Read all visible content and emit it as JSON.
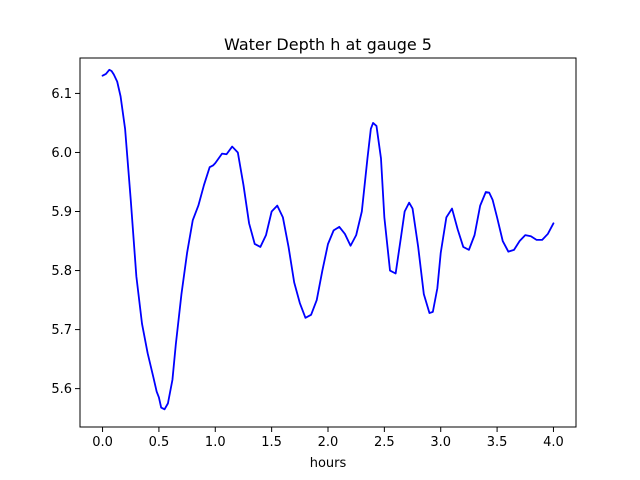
{
  "chart_data": {
    "type": "line",
    "title": "Water Depth h at gauge 5",
    "xlabel": "hours",
    "ylabel": "",
    "xlim": [
      -0.2,
      4.2
    ],
    "ylim": [
      5.535,
      6.16
    ],
    "grid": false,
    "legend": "none",
    "xticks": [
      0.0,
      0.5,
      1.0,
      1.5,
      2.0,
      2.5,
      3.0,
      3.5,
      4.0
    ],
    "xtick_labels": [
      "0.0",
      "0.5",
      "1.0",
      "1.5",
      "2.0",
      "2.5",
      "3.0",
      "3.5",
      "4.0"
    ],
    "yticks": [
      5.6,
      5.7,
      5.8,
      5.9,
      6.0,
      6.1
    ],
    "ytick_labels": [
      "5.6",
      "5.7",
      "5.8",
      "5.9",
      "6.0",
      "6.1"
    ],
    "series": [
      {
        "color": "#0000ff",
        "x": [
          0.0,
          0.03,
          0.06,
          0.08,
          0.1,
          0.13,
          0.16,
          0.2,
          0.25,
          0.3,
          0.35,
          0.4,
          0.45,
          0.48,
          0.5,
          0.52,
          0.55,
          0.58,
          0.62,
          0.65,
          0.7,
          0.75,
          0.8,
          0.85,
          0.9,
          0.95,
          0.98,
          1.0,
          1.03,
          1.06,
          1.1,
          1.15,
          1.2,
          1.25,
          1.3,
          1.35,
          1.4,
          1.45,
          1.5,
          1.55,
          1.6,
          1.65,
          1.7,
          1.75,
          1.8,
          1.85,
          1.9,
          1.95,
          2.0,
          2.05,
          2.1,
          2.15,
          2.2,
          2.25,
          2.3,
          2.35,
          2.38,
          2.4,
          2.43,
          2.47,
          2.5,
          2.55,
          2.6,
          2.65,
          2.68,
          2.72,
          2.75,
          2.8,
          2.85,
          2.9,
          2.93,
          2.97,
          3.0,
          3.05,
          3.1,
          3.15,
          3.2,
          3.25,
          3.3,
          3.35,
          3.4,
          3.43,
          3.46,
          3.5,
          3.55,
          3.6,
          3.65,
          3.7,
          3.75,
          3.8,
          3.85,
          3.9,
          3.95,
          4.0
        ],
        "values": [
          6.13,
          6.133,
          6.14,
          6.138,
          6.132,
          6.12,
          6.095,
          6.04,
          5.92,
          5.79,
          5.71,
          5.66,
          5.62,
          5.595,
          5.585,
          5.568,
          5.565,
          5.575,
          5.615,
          5.675,
          5.76,
          5.83,
          5.885,
          5.91,
          5.945,
          5.975,
          5.978,
          5.982,
          5.99,
          5.998,
          5.997,
          6.01,
          6.0,
          5.945,
          5.88,
          5.845,
          5.84,
          5.86,
          5.9,
          5.91,
          5.89,
          5.84,
          5.78,
          5.745,
          5.72,
          5.725,
          5.75,
          5.8,
          5.845,
          5.868,
          5.874,
          5.862,
          5.842,
          5.86,
          5.9,
          5.99,
          6.04,
          6.05,
          6.045,
          5.99,
          5.89,
          5.8,
          5.795,
          5.86,
          5.9,
          5.915,
          5.905,
          5.84,
          5.76,
          5.728,
          5.73,
          5.77,
          5.83,
          5.89,
          5.905,
          5.87,
          5.84,
          5.835,
          5.86,
          5.91,
          5.933,
          5.932,
          5.92,
          5.89,
          5.85,
          5.832,
          5.835,
          5.85,
          5.86,
          5.858,
          5.852,
          5.852,
          5.862,
          5.88
        ]
      }
    ]
  }
}
